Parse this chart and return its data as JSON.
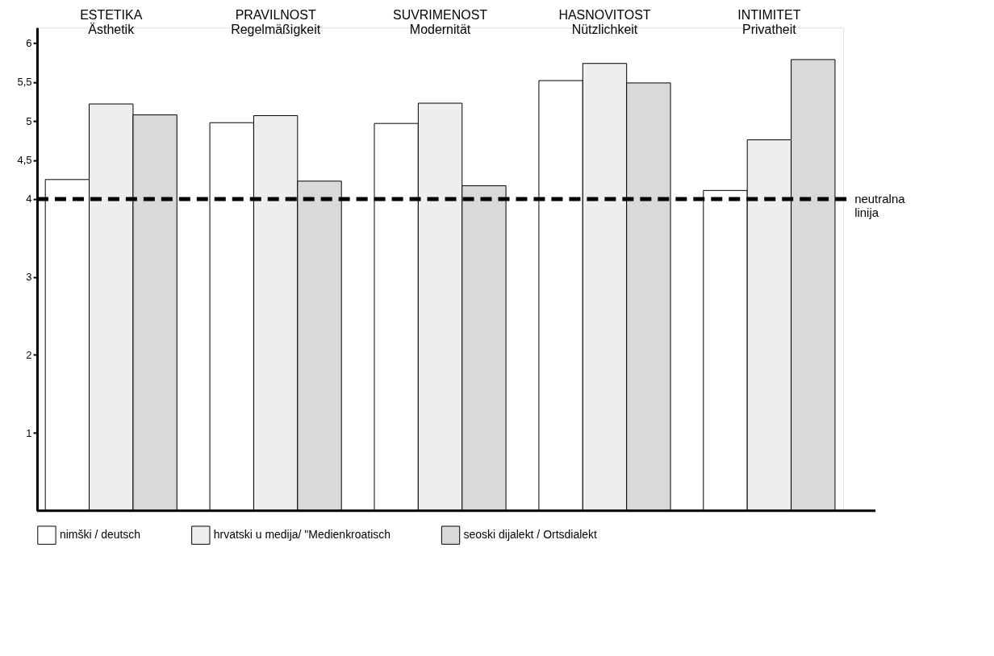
{
  "chart_data": {
    "type": "bar",
    "categories": [
      "ESTETIKA\nÄsthetik",
      "PRAVILNOST\nRegelmäßigkeit",
      "SUVRIMENOST\nModernität",
      "HASNOVITOST\nNützlichkeit",
      "INTIMITET\nPrivatheit"
    ],
    "series": [
      {
        "name": "nimški / deutsch",
        "color": "#ffffff",
        "values": [
          4.25,
          4.98,
          4.97,
          5.52,
          4.11
        ]
      },
      {
        "name": "hrvatski u medija/ \"Medienkroatisch",
        "color": "#eeeeee",
        "values": [
          5.22,
          5.07,
          5.23,
          5.74,
          4.76
        ]
      },
      {
        "name": "seoski dijalekt / Ortsdialekt",
        "color": "#d9d9d9",
        "values": [
          5.08,
          4.23,
          4.17,
          5.49,
          5.79
        ]
      }
    ],
    "ylim": [
      0,
      6.2
    ],
    "yticks": [
      1,
      2,
      3,
      4,
      {
        "value": 4.5,
        "label": "4,5"
      },
      5,
      {
        "value": 5.5,
        "label": "5,5"
      },
      6
    ],
    "ref_lines": [
      {
        "axis": "y",
        "value": 4,
        "label": "neutralna linija",
        "line_style": "dashed",
        "color": "#000000"
      }
    ],
    "grid": false,
    "legend": "bottom"
  }
}
